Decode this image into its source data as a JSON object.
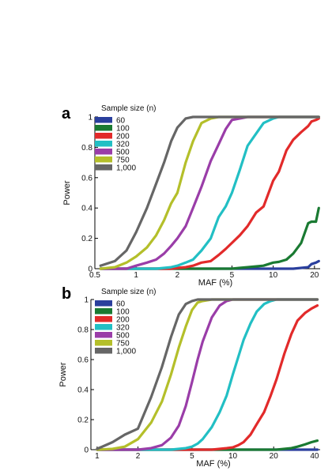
{
  "panels": [
    {
      "letter": "a",
      "legend_title": "Sample size (n)",
      "chart_data": {
        "type": "line",
        "xscale": "log",
        "xlim": [
          0.5,
          22
        ],
        "ylim": [
          0,
          1
        ],
        "xticks": [
          0.5,
          1,
          2,
          5,
          10,
          20
        ],
        "xtick_labels": [
          "0.5",
          "1",
          "2",
          "5",
          "10",
          "20"
        ],
        "yticks": [
          0,
          0.2,
          0.4,
          0.6,
          0.8,
          1
        ],
        "ytick_labels": [
          "0",
          "0.2",
          "0.4",
          "0.6",
          "0.8",
          "1"
        ],
        "xlabel": "MAF (%)",
        "ylabel": "Power",
        "x": [
          0.55,
          0.7,
          0.85,
          1.0,
          1.2,
          1.4,
          1.6,
          1.8,
          2.0,
          2.3,
          2.6,
          3.0,
          3.5,
          4.0,
          4.5,
          5.0,
          5.7,
          6.5,
          7.5,
          8.5,
          10.0,
          11.0,
          12.5,
          14.0,
          16.0,
          18.0,
          19.0,
          20.5,
          21.5
        ],
        "series": [
          {
            "name": "60",
            "color": "#2a3f9d",
            "values": [
              0,
              0,
              0,
              0,
              0,
              0,
              0,
              0,
              0,
              0,
              0,
              0,
              0,
              0,
              0,
              0,
              0,
              0,
              0,
              0,
              0,
              0,
              0,
              0,
              0.005,
              0.01,
              0.03,
              0.04,
              0.05
            ]
          },
          {
            "name": "100",
            "color": "#1a7a32",
            "values": [
              0,
              0,
              0,
              0,
              0,
              0,
              0,
              0,
              0,
              0,
              0,
              0,
              0,
              0,
              0,
              0,
              0.005,
              0.01,
              0.015,
              0.02,
              0.04,
              0.045,
              0.06,
              0.1,
              0.17,
              0.3,
              0.31,
              0.31,
              0.4
            ]
          },
          {
            "name": "200",
            "color": "#e22a2a",
            "values": [
              0,
              0,
              0,
              0,
              0,
              0,
              0,
              0,
              0.005,
              0.01,
              0.02,
              0.04,
              0.05,
              0.09,
              0.13,
              0.17,
              0.22,
              0.28,
              0.37,
              0.41,
              0.58,
              0.64,
              0.78,
              0.85,
              0.9,
              0.94,
              0.97,
              0.98,
              0.99
            ]
          },
          {
            "name": "320",
            "color": "#22bfc4",
            "values": [
              0,
              0,
              0,
              0,
              0,
              0,
              0.005,
              0.01,
              0.02,
              0.04,
              0.06,
              0.12,
              0.2,
              0.34,
              0.41,
              0.5,
              0.65,
              0.81,
              0.89,
              0.96,
              0.99,
              1,
              1,
              1,
              1,
              1,
              1,
              1,
              1
            ]
          },
          {
            "name": "500",
            "color": "#9a3da8",
            "values": [
              0,
              0,
              0,
              0.02,
              0.04,
              0.06,
              0.1,
              0.15,
              0.2,
              0.28,
              0.4,
              0.54,
              0.71,
              0.82,
              0.92,
              0.98,
              0.99,
              1,
              1,
              1,
              1,
              1,
              1,
              1,
              1,
              1,
              1,
              1,
              1
            ]
          },
          {
            "name": "750",
            "color": "#b4bf2a",
            "values": [
              0,
              0.01,
              0.04,
              0.08,
              0.14,
              0.22,
              0.32,
              0.43,
              0.5,
              0.7,
              0.84,
              0.96,
              0.99,
              1,
              1,
              1,
              1,
              1,
              1,
              1,
              1,
              1,
              1,
              1,
              1,
              1,
              1,
              1,
              1
            ]
          },
          {
            "name": "1,000",
            "color": "#666666",
            "values": [
              0.02,
              0.05,
              0.12,
              0.24,
              0.4,
              0.56,
              0.7,
              0.84,
              0.93,
              0.99,
              1,
              1,
              1,
              1,
              1,
              1,
              1,
              1,
              1,
              1,
              1,
              1,
              1,
              1,
              1,
              1,
              1,
              1,
              1
            ]
          }
        ]
      }
    },
    {
      "letter": "b",
      "legend_title": "Sample size (n)",
      "chart_data": {
        "type": "line",
        "xscale": "log",
        "xlim": [
          0.9,
          44
        ],
        "ylim": [
          0,
          1
        ],
        "xticks": [
          1,
          2,
          5,
          10,
          20,
          40
        ],
        "xtick_labels": [
          "1",
          "2",
          "5",
          "10",
          "20",
          "40"
        ],
        "yticks": [
          0,
          0.2,
          0.4,
          0.6,
          0.8,
          1
        ],
        "ytick_labels": [
          "0",
          "0.2",
          "0.4",
          "0.6",
          "0.8",
          "1"
        ],
        "xlabel": "MAF (%)",
        "ylabel": "Power",
        "x": [
          1.0,
          1.3,
          1.6,
          2.0,
          2.5,
          3.0,
          3.5,
          4.0,
          4.5,
          5.0,
          5.5,
          6.0,
          7.0,
          8.0,
          9.0,
          10.0,
          11.0,
          12.0,
          13.5,
          15.0,
          17.0,
          19.0,
          21.0,
          24.0,
          27.0,
          30.0,
          34.0,
          38.0,
          42.0
        ],
        "series": [
          {
            "name": "60",
            "color": "#2a3f9d",
            "values": [
              0,
              0,
              0,
              0,
              0,
              0,
              0,
              0,
              0,
              0,
              0,
              0,
              0,
              0,
              0,
              0,
              0,
              0,
              0,
              0,
              0,
              0,
              0,
              0,
              0,
              0,
              0,
              0,
              0
            ]
          },
          {
            "name": "100",
            "color": "#1a7a32",
            "values": [
              0,
              0,
              0,
              0,
              0,
              0,
              0,
              0,
              0,
              0,
              0,
              0,
              0,
              0,
              0,
              0,
              0,
              0,
              0,
              0,
              0,
              0,
              0,
              0.005,
              0.01,
              0.02,
              0.035,
              0.05,
              0.06
            ]
          },
          {
            "name": "200",
            "color": "#e22a2a",
            "values": [
              0,
              0,
              0,
              0,
              0,
              0,
              0,
              0,
              0,
              0,
              0,
              0,
              0,
              0.005,
              0.01,
              0.015,
              0.03,
              0.05,
              0.1,
              0.17,
              0.25,
              0.36,
              0.47,
              0.64,
              0.77,
              0.86,
              0.91,
              0.94,
              0.96
            ]
          },
          {
            "name": "320",
            "color": "#22bfc4",
            "values": [
              0,
              0,
              0,
              0,
              0,
              0,
              0,
              0.005,
              0.01,
              0.02,
              0.04,
              0.07,
              0.15,
              0.25,
              0.36,
              0.5,
              0.62,
              0.73,
              0.84,
              0.92,
              0.97,
              0.99,
              1,
              1,
              1,
              1,
              1,
              1,
              1
            ]
          },
          {
            "name": "500",
            "color": "#9a3da8",
            "values": [
              0,
              0,
              0,
              0,
              0.01,
              0.03,
              0.08,
              0.16,
              0.29,
              0.45,
              0.6,
              0.72,
              0.88,
              0.96,
              0.99,
              1,
              1,
              1,
              1,
              1,
              1,
              1,
              1,
              1,
              1,
              1,
              1,
              1,
              1
            ]
          },
          {
            "name": "750",
            "color": "#b4bf2a",
            "values": [
              0,
              0.005,
              0.02,
              0.07,
              0.18,
              0.32,
              0.5,
              0.68,
              0.82,
              0.93,
              0.98,
              0.99,
              1,
              1,
              1,
              1,
              1,
              1,
              1,
              1,
              1,
              1,
              1,
              1,
              1,
              1,
              1,
              1,
              1
            ]
          },
          {
            "name": "1,000",
            "color": "#666666",
            "values": [
              0.005,
              0.05,
              0.1,
              0.14,
              0.35,
              0.55,
              0.75,
              0.9,
              0.97,
              0.99,
              1,
              1,
              1,
              1,
              1,
              1,
              1,
              1,
              1,
              1,
              1,
              1,
              1,
              1,
              1,
              1,
              1,
              1,
              1
            ]
          }
        ]
      }
    }
  ]
}
